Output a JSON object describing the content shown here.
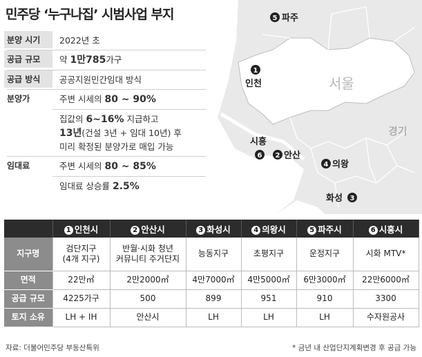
{
  "title": "민주당 ‘누구나집’ 시범사업 부지",
  "info": {
    "rows": [
      {
        "label": "분양 시기",
        "value": "2022년 초"
      },
      {
        "label": "공급 규모",
        "pre": "약 ",
        "bold": "1만785",
        "post": "가구"
      },
      {
        "label": "공급 방식",
        "value": "공공지원민간임대 방식"
      }
    ],
    "presale": {
      "label": "분양가",
      "line1_pre": "주변 시세의 ",
      "line1_bold": "80 ~ 90%",
      "line2_pre": "집값의 ",
      "line2_bold": "6~16%",
      "line2_post": " 지급하고",
      "line3_bold": "13년",
      "line3_post": "(건설 3년 + 임대 10년) 후",
      "line4": "미리 확정된 분양가로 매입 가능"
    },
    "rent": {
      "label": "임대료",
      "line1_pre": "주변 시세의 ",
      "line1_bold": "80 ~ 85%",
      "line2_pre": "임대료 상승률 ",
      "line2_bold": "2.5%"
    }
  },
  "map": {
    "seoul": "서울",
    "gyeonggi": "경기",
    "pins": [
      {
        "num": "1",
        "name": "인천"
      },
      {
        "num": "2",
        "name": "안산"
      },
      {
        "num": "3",
        "name": "화성"
      },
      {
        "num": "4",
        "name": "의왕"
      },
      {
        "num": "5",
        "name": "파주"
      },
      {
        "num": "6",
        "name": "시흥"
      }
    ]
  },
  "table": {
    "headers": [
      {
        "num": "1",
        "city": "인천시"
      },
      {
        "num": "2",
        "city": "안산시"
      },
      {
        "num": "3",
        "city": "화성시"
      },
      {
        "num": "4",
        "city": "의왕시"
      },
      {
        "num": "5",
        "city": "파주시"
      },
      {
        "num": "6",
        "city": "시흥시"
      }
    ],
    "rows": [
      {
        "label": "지구명",
        "cells": [
          "검단지구\n(4개 지구)",
          "반월·시화 청년\n커뮤니티 주거단지",
          "능동지구",
          "초평지구",
          "운정지구",
          "시화 MTV*"
        ]
      },
      {
        "label": "면적",
        "cells": [
          "22만㎡",
          "2만2000㎡",
          "4만7000㎡",
          "4만5000㎡",
          "6만3000㎡",
          "22만6000㎡"
        ]
      },
      {
        "label": "공급 규모",
        "cells": [
          "4225가구",
          "500",
          "899",
          "951",
          "910",
          "3300"
        ]
      },
      {
        "label": "토지 소유",
        "cells": [
          "LH + IH",
          "안산시",
          "LH",
          "LH",
          "LH",
          "수자원공사"
        ]
      }
    ]
  },
  "source": "자료: 더불어민주당 부동산특위",
  "footnote": "* 금년 내 산업단지계획변경 후 공급 가능"
}
